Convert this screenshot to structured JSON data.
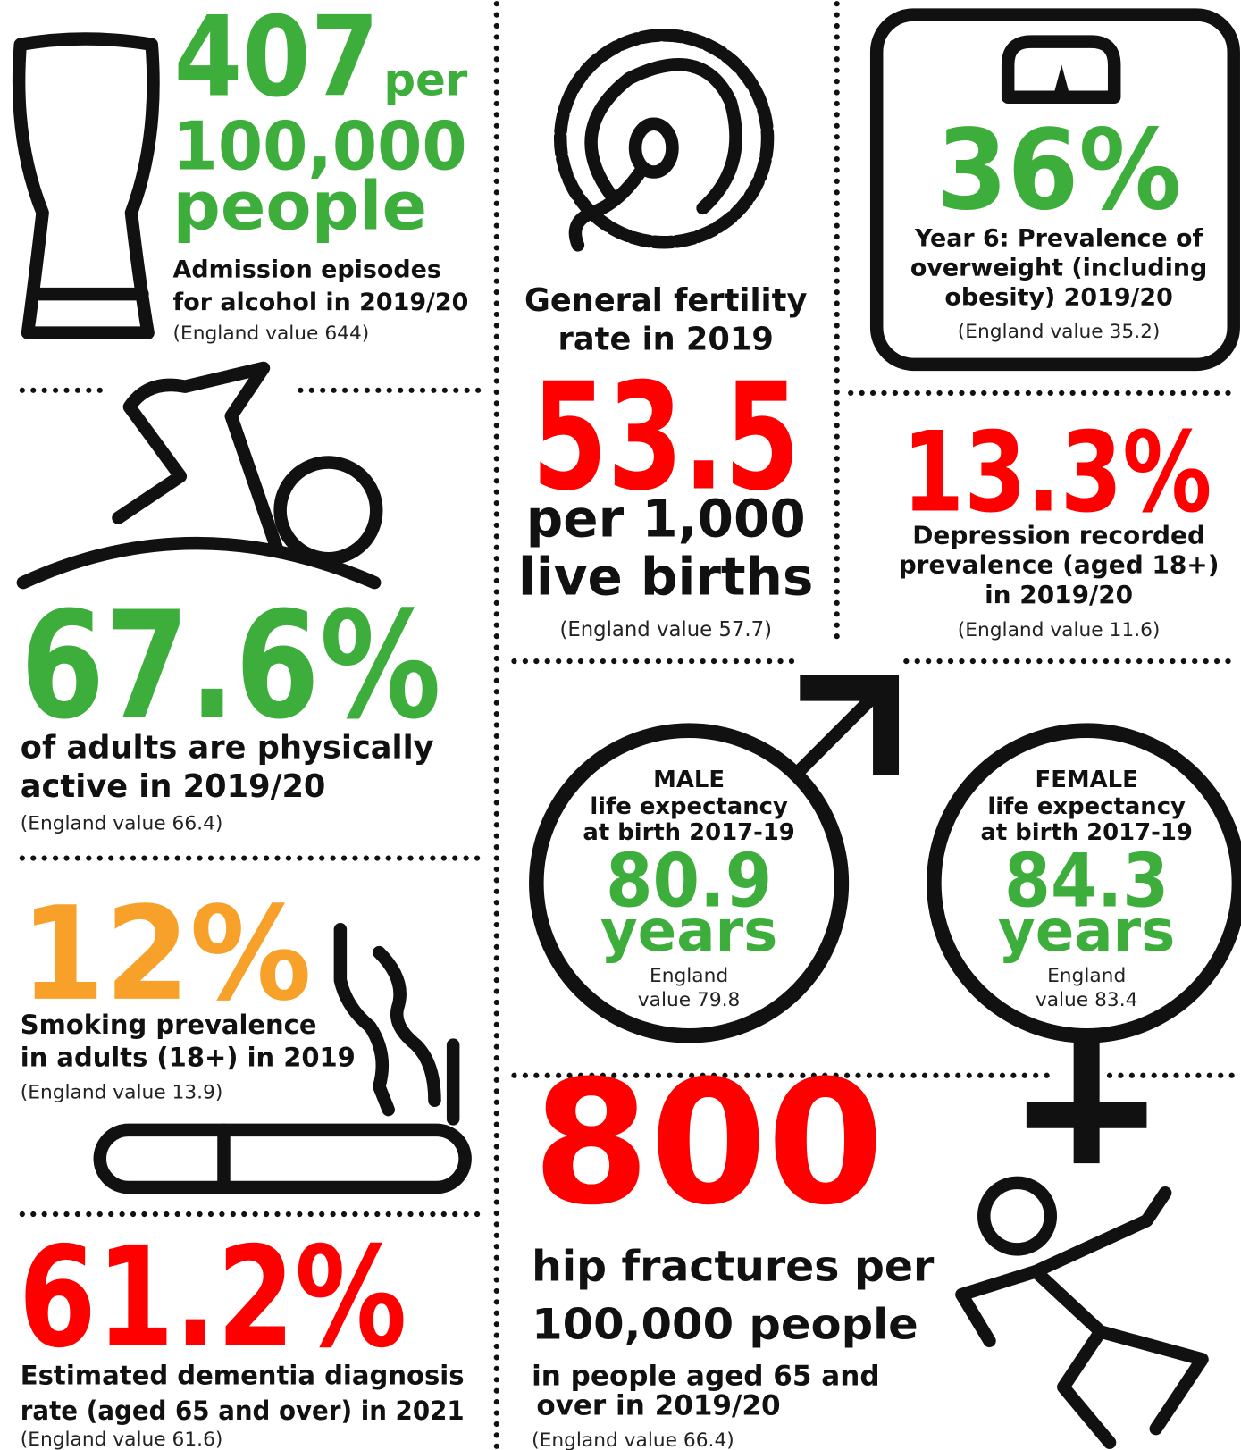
{
  "alcohol": {
    "value": "407",
    "unit": "per",
    "lines": [
      "100,000",
      "people"
    ],
    "label": [
      "Admission episodes",
      "for alcohol in 2019/20"
    ],
    "england": "(England value 644)"
  },
  "fertility": {
    "label": [
      "General fertility",
      "rate in 2019"
    ],
    "value": "53.5",
    "lines": [
      "per 1,000",
      "live births"
    ],
    "england": "(England value 57.7)"
  },
  "overweight": {
    "value": "36%",
    "label": [
      "Year 6: Prevalence of",
      "overweight (including",
      "obesity) 2019/20"
    ],
    "england": "(England value 35.2)"
  },
  "physical": {
    "value": "67.6%",
    "label": [
      "of adults are physically",
      "active in 2019/20"
    ],
    "england": "(England value 66.4)"
  },
  "depression": {
    "value": "13.3%",
    "label": [
      "Depression recorded",
      "prevalence (aged 18+)",
      "in 2019/20"
    ],
    "england": "(England value 11.6)"
  },
  "smoking": {
    "value": "12%",
    "label": [
      "Smoking prevalence",
      "in adults (18+) in 2019"
    ],
    "england": "(England value 13.9)"
  },
  "male": {
    "heading": "MALE",
    "label": [
      "life expectancy",
      "at birth 2017-19"
    ],
    "value": "80.9",
    "unit": "years",
    "england": [
      "England",
      "value 79.8"
    ]
  },
  "female": {
    "heading": "FEMALE",
    "label": [
      "life expectancy",
      "at birth 2017-19"
    ],
    "value": "84.3",
    "unit": "years",
    "england": [
      "England",
      "value 83.4"
    ]
  },
  "dementia": {
    "value": "61.2%",
    "label": [
      "Estimated dementia diagnosis",
      "rate (aged 65 and over) in 2021"
    ],
    "england": "(England value 61.6)"
  },
  "hip": {
    "value": "800",
    "lines": [
      "hip fractures per",
      "100,000 people"
    ],
    "label": [
      "in people aged 65 and",
      "over in 2019/20"
    ],
    "england": "(England value 66.4)"
  }
}
